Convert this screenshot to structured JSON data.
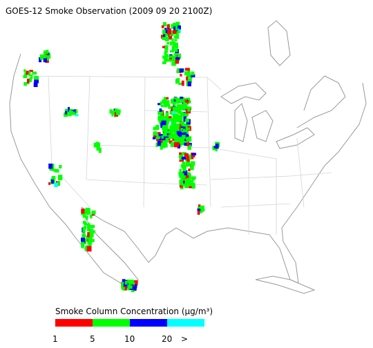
{
  "title": "GOES-12 Smoke Observation (2009 09 20  2100Z)",
  "legend": {
    "title": "Smoke Column Concentration (μg/m³)",
    "colors": [
      "#ff0000",
      "#00ff00",
      "#0000ff",
      "#00ffff"
    ],
    "labels": [
      "1",
      "5",
      "10",
      "20",
      ">"
    ]
  }
}
